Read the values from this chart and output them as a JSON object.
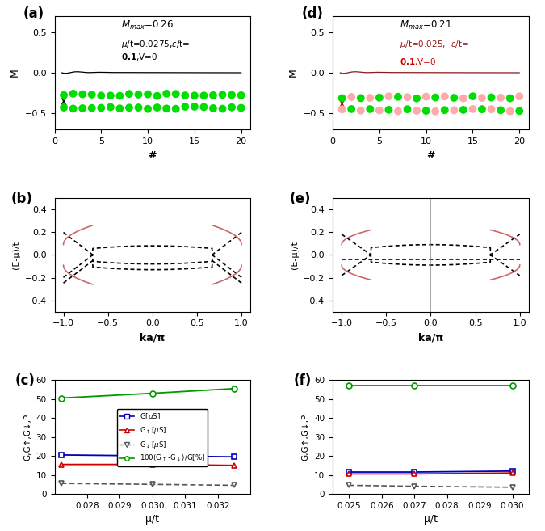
{
  "panel_a": {
    "label": "(a)",
    "ylim": [
      -0.7,
      0.7
    ],
    "yticks": [
      -0.5,
      0.0,
      0.5
    ],
    "xlim": [
      0,
      21
    ],
    "xticks": [
      0,
      5,
      10,
      15,
      20
    ],
    "xlabel": "#",
    "ylabel": "M",
    "dot_y_upper": -0.27,
    "dot_y_lower": -0.43
  },
  "panel_d": {
    "label": "(d)",
    "ylim": [
      -0.7,
      0.7
    ],
    "yticks": [
      -0.5,
      0.0,
      0.5
    ],
    "xlim": [
      0,
      21
    ],
    "xticks": [
      0,
      5,
      10,
      15,
      20
    ],
    "xlabel": "#",
    "ylabel": "M",
    "dot_y_upper": -0.3,
    "dot_y_lower": -0.46
  },
  "panel_b": {
    "label": "(b)",
    "ylim": [
      -0.5,
      0.5
    ],
    "yticks": [
      -0.4,
      -0.2,
      0.0,
      0.2,
      0.4
    ],
    "xlim": [
      -1.1,
      1.1
    ],
    "xticks": [
      -1.0,
      -0.5,
      0.0,
      0.5,
      1.0
    ],
    "xlabel": "ka/π",
    "ylabel": "(E-μ)/t"
  },
  "panel_e": {
    "label": "(e)",
    "ylim": [
      -0.5,
      0.5
    ],
    "yticks": [
      -0.4,
      -0.2,
      0.0,
      0.2,
      0.4
    ],
    "xlim": [
      -1.1,
      1.1
    ],
    "xticks": [
      -1.0,
      -0.5,
      0.0,
      0.5,
      1.0
    ],
    "xlabel": "ka/π",
    "ylabel": "(E-μ)/t"
  },
  "panel_c": {
    "label": "(c)",
    "ylim": [
      0,
      60
    ],
    "yticks": [
      0,
      10,
      20,
      30,
      40,
      50,
      60
    ],
    "xlim": [
      0.027,
      0.033
    ],
    "xticks": [
      0.028,
      0.029,
      0.03,
      0.031,
      0.032
    ],
    "xlabel": "μ/t",
    "ylabel": "G,G↑,G↓,P",
    "G_mu": [
      0.0272,
      0.03,
      0.0325
    ],
    "G_val": [
      20.5,
      20.0,
      19.5
    ],
    "Gx_mu": [
      0.0272,
      0.03,
      0.0325
    ],
    "Gx_val": [
      15.5,
      15.5,
      15.0
    ],
    "Gy_mu": [
      0.0272,
      0.03,
      0.0325
    ],
    "Gy_val": [
      5.5,
      5.0,
      4.5
    ],
    "P_mu": [
      0.0272,
      0.03,
      0.0325
    ],
    "P_val": [
      50.5,
      53.0,
      55.5
    ]
  },
  "panel_f": {
    "label": "(f)",
    "ylim": [
      0,
      60
    ],
    "yticks": [
      0,
      10,
      20,
      30,
      40,
      50,
      60
    ],
    "xlim": [
      0.0245,
      0.0305
    ],
    "xticks": [
      0.025,
      0.026,
      0.027,
      0.028,
      0.029,
      0.03
    ],
    "xlabel": "μ/t",
    "ylabel": "G,G↑,G↓,P",
    "G_mu": [
      0.025,
      0.027,
      0.03
    ],
    "G_val": [
      11.5,
      11.5,
      12.0
    ],
    "Gx_mu": [
      0.025,
      0.027,
      0.03
    ],
    "Gx_val": [
      10.5,
      10.5,
      11.0
    ],
    "Gy_mu": [
      0.025,
      0.027,
      0.03
    ],
    "Gy_val": [
      4.5,
      4.0,
      3.5
    ],
    "P_mu": [
      0.025,
      0.027,
      0.03
    ],
    "P_val": [
      57.0,
      57.0,
      57.0
    ]
  },
  "colors": {
    "green_dot": "#00dd00",
    "pink_dot": "#ffaaaa",
    "dark_red_line": "#8b1a1a",
    "black_line": "black",
    "blue": "#0000bb",
    "red": "#cc0000",
    "dark_green": "#009900",
    "grey_dash": "#555555"
  }
}
